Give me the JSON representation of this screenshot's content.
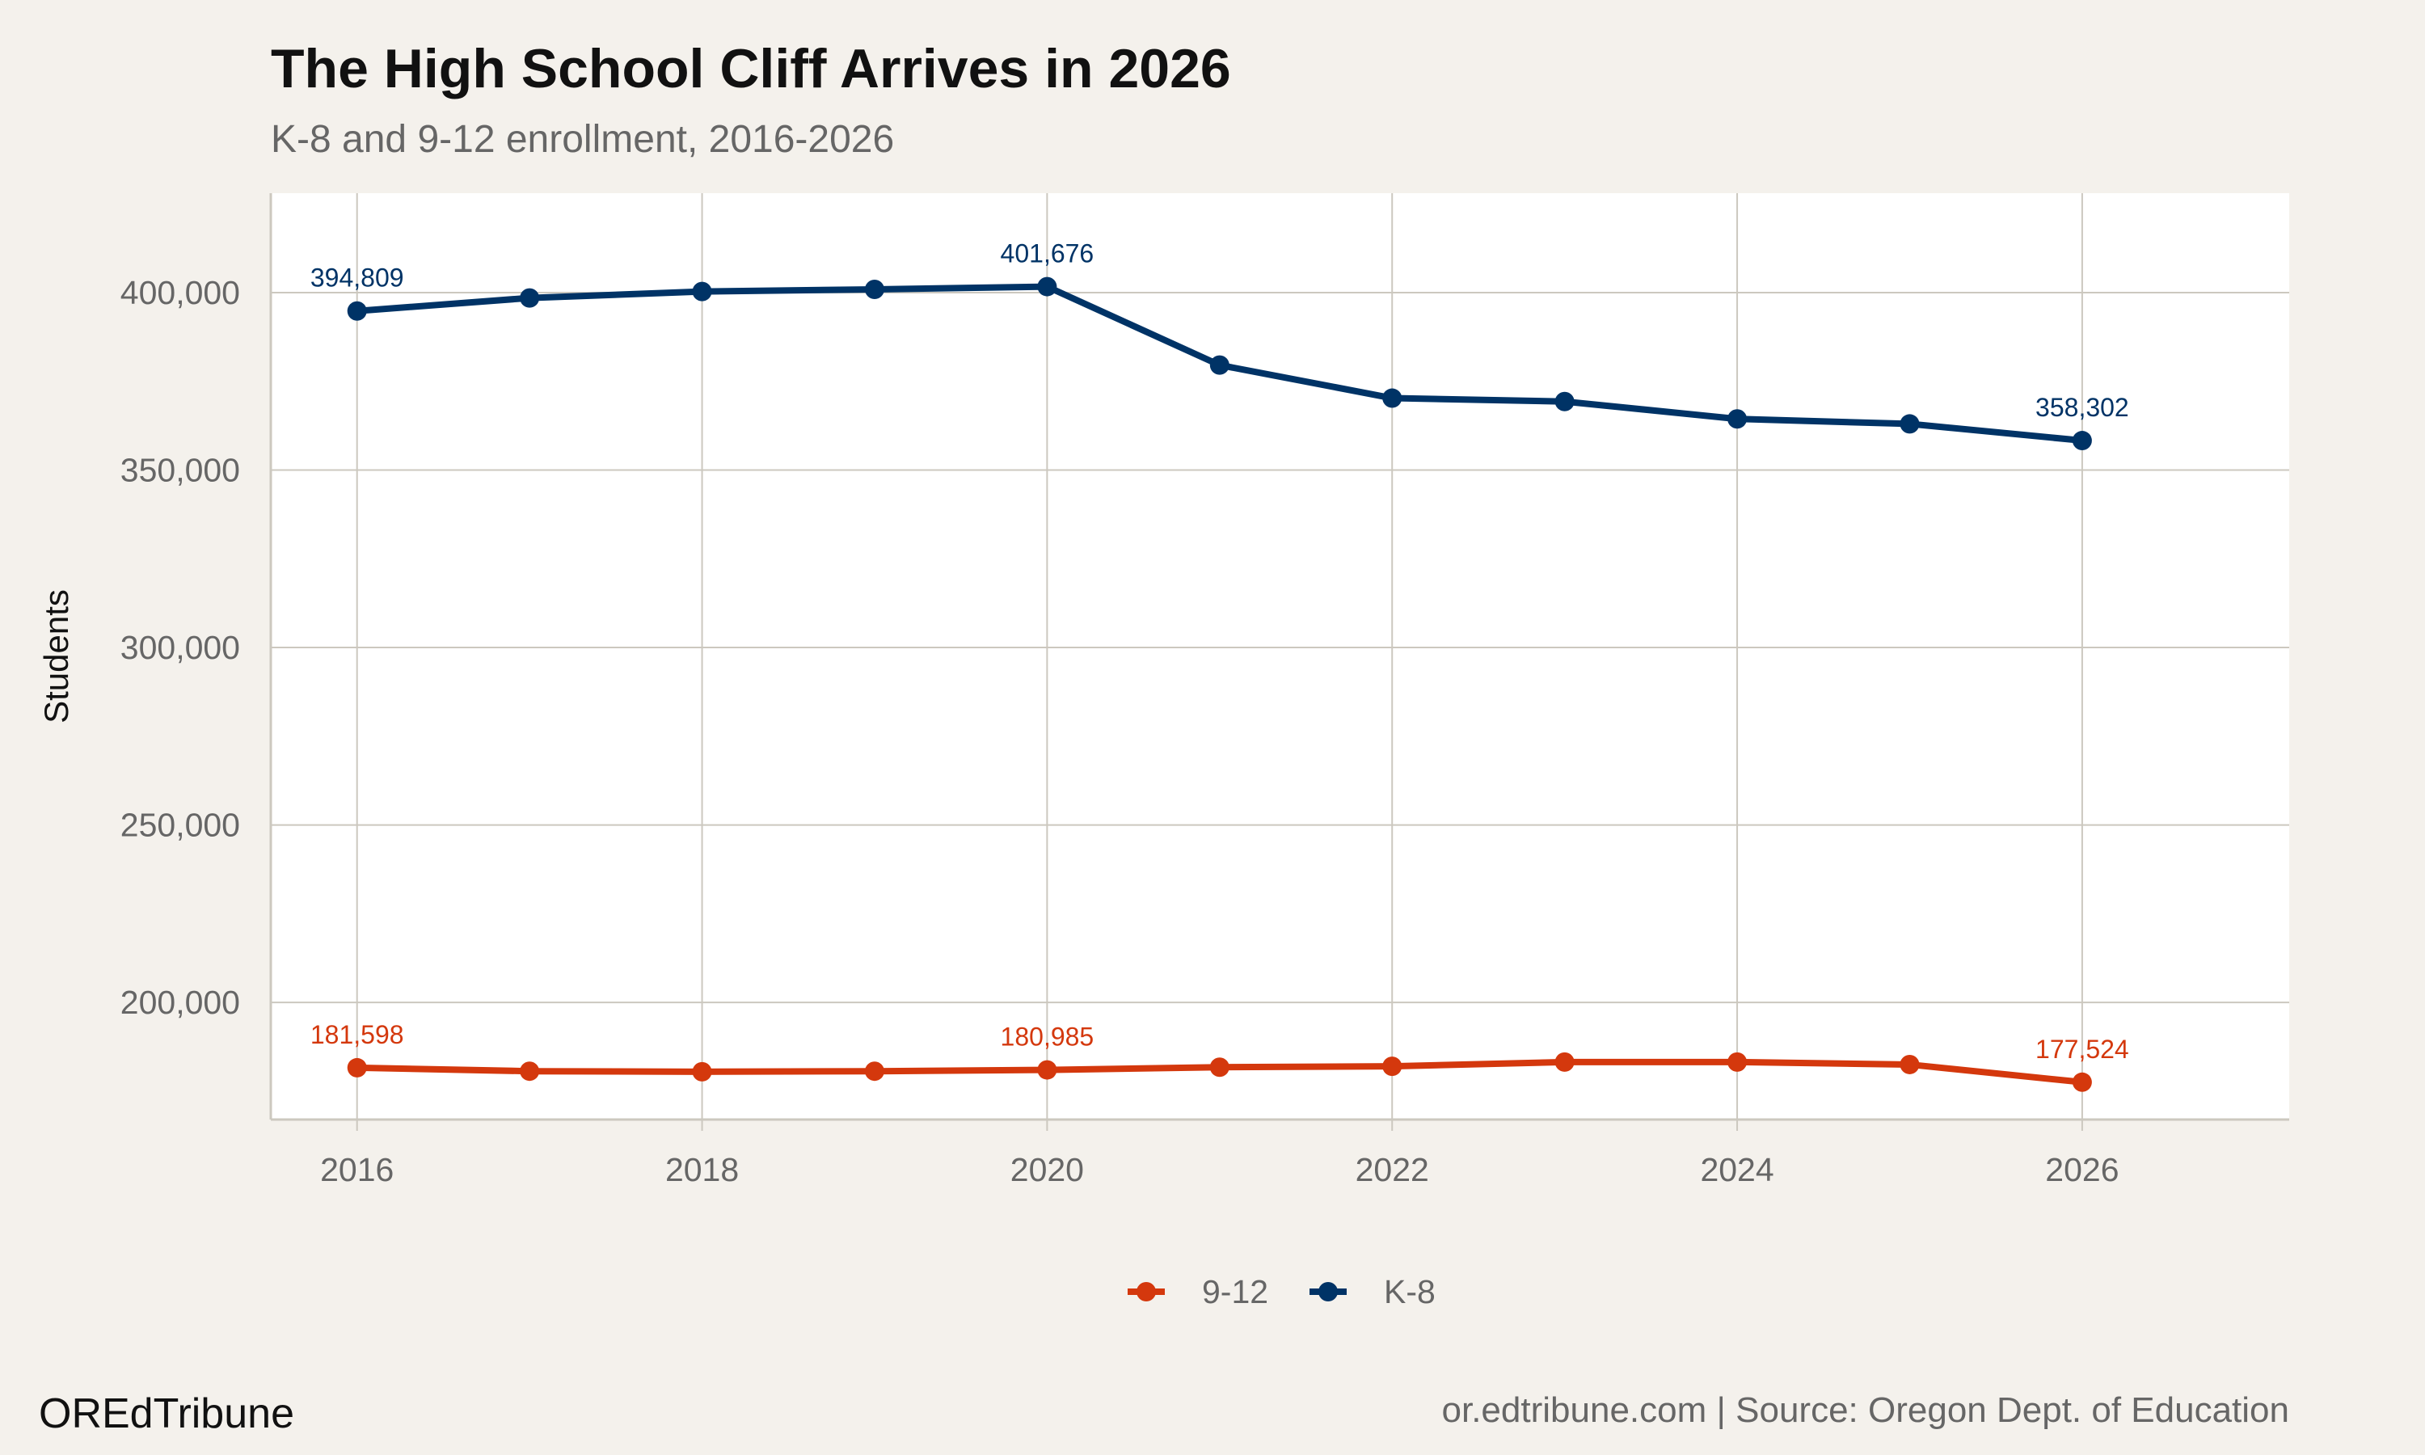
{
  "chart_data": {
    "type": "line",
    "title": "The High School Cliff Arrives in 2026",
    "subtitle": "K-8 and 9-12 enrollment, 2016-2026",
    "xlabel": "",
    "ylabel": "Students",
    "x": [
      2016,
      2017,
      2018,
      2019,
      2020,
      2021,
      2022,
      2023,
      2024,
      2025,
      2026
    ],
    "xlim": [
      2015.5,
      2027.2
    ],
    "ylim": [
      167000,
      428000
    ],
    "xticks": [
      2016,
      2018,
      2020,
      2022,
      2024,
      2026
    ],
    "xtick_labels": [
      "2016",
      "2018",
      "2020",
      "2022",
      "2024",
      "2026"
    ],
    "yticks": [
      200000,
      250000,
      300000,
      350000,
      400000
    ],
    "ytick_labels": [
      "200,000",
      "250,000",
      "300,000",
      "350,000",
      "400,000"
    ],
    "grid": true,
    "legend_position": "bottom",
    "series": [
      {
        "name": "9-12",
        "color": "#d4380d",
        "values": [
          181598,
          180620,
          180470,
          180620,
          180985,
          181750,
          182000,
          183200,
          183200,
          182500,
          177524
        ],
        "labels": {
          "2016": "181,598",
          "2020": "180,985",
          "2026": "177,524"
        }
      },
      {
        "name": "K-8",
        "color": "#003366",
        "values": [
          394809,
          398480,
          400300,
          400900,
          401676,
          379570,
          370260,
          369300,
          364400,
          363000,
          358302
        ],
        "labels": {
          "2016": "394,809",
          "2020": "401,676",
          "2026": "358,302"
        }
      }
    ]
  },
  "footer": {
    "brand": "OREdTribune",
    "source": "or.edtribune.com | Source: Oregon Dept. of Education"
  },
  "colors": {
    "background": "#f4f1ec",
    "panel": "#ffffff",
    "grid": "#ccc8bf"
  }
}
